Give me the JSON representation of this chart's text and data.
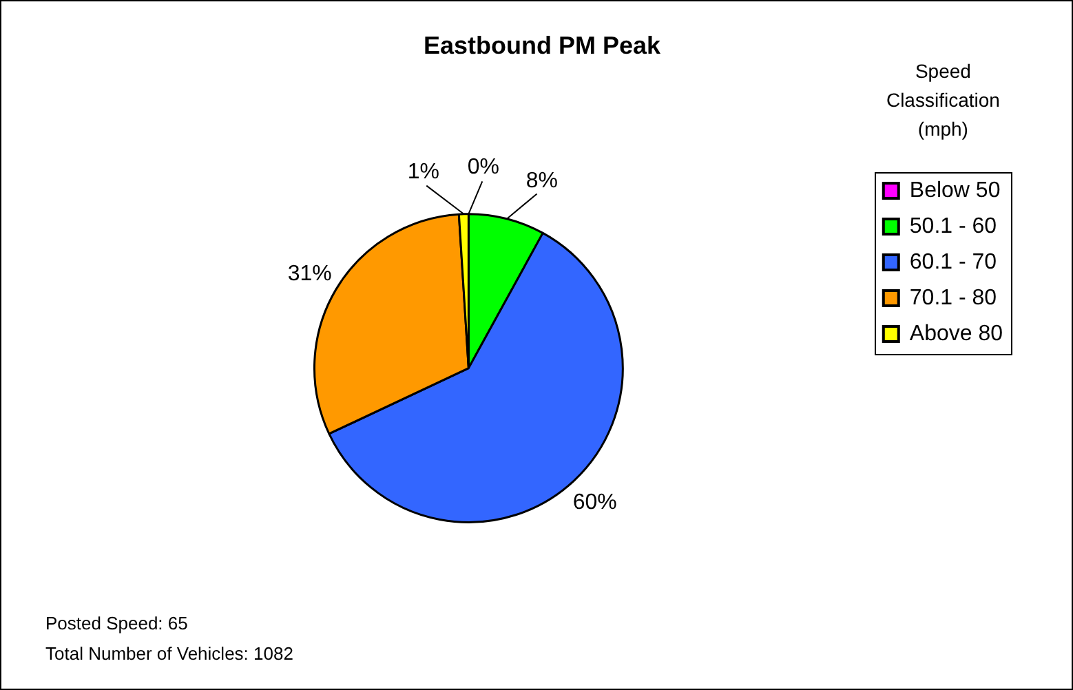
{
  "chart_data": {
    "type": "pie",
    "title": "Eastbound PM Peak",
    "legend_title": "Speed Classification (mph)",
    "legend": "right",
    "categories": [
      "Below 50",
      "50.1 - 60",
      "60.1 - 70",
      "70.1 - 80",
      "Above 80"
    ],
    "values": [
      0,
      8,
      60,
      31,
      1
    ],
    "value_labels": [
      "0%",
      "8%",
      "60%",
      "31%",
      "1%"
    ],
    "colors": [
      "#ff00ff",
      "#00ff00",
      "#3366ff",
      "#ff9900",
      "#ffff00"
    ],
    "annotations": [
      "Posted Speed: 65",
      "Total Number of Vehicles: 1082"
    ]
  }
}
